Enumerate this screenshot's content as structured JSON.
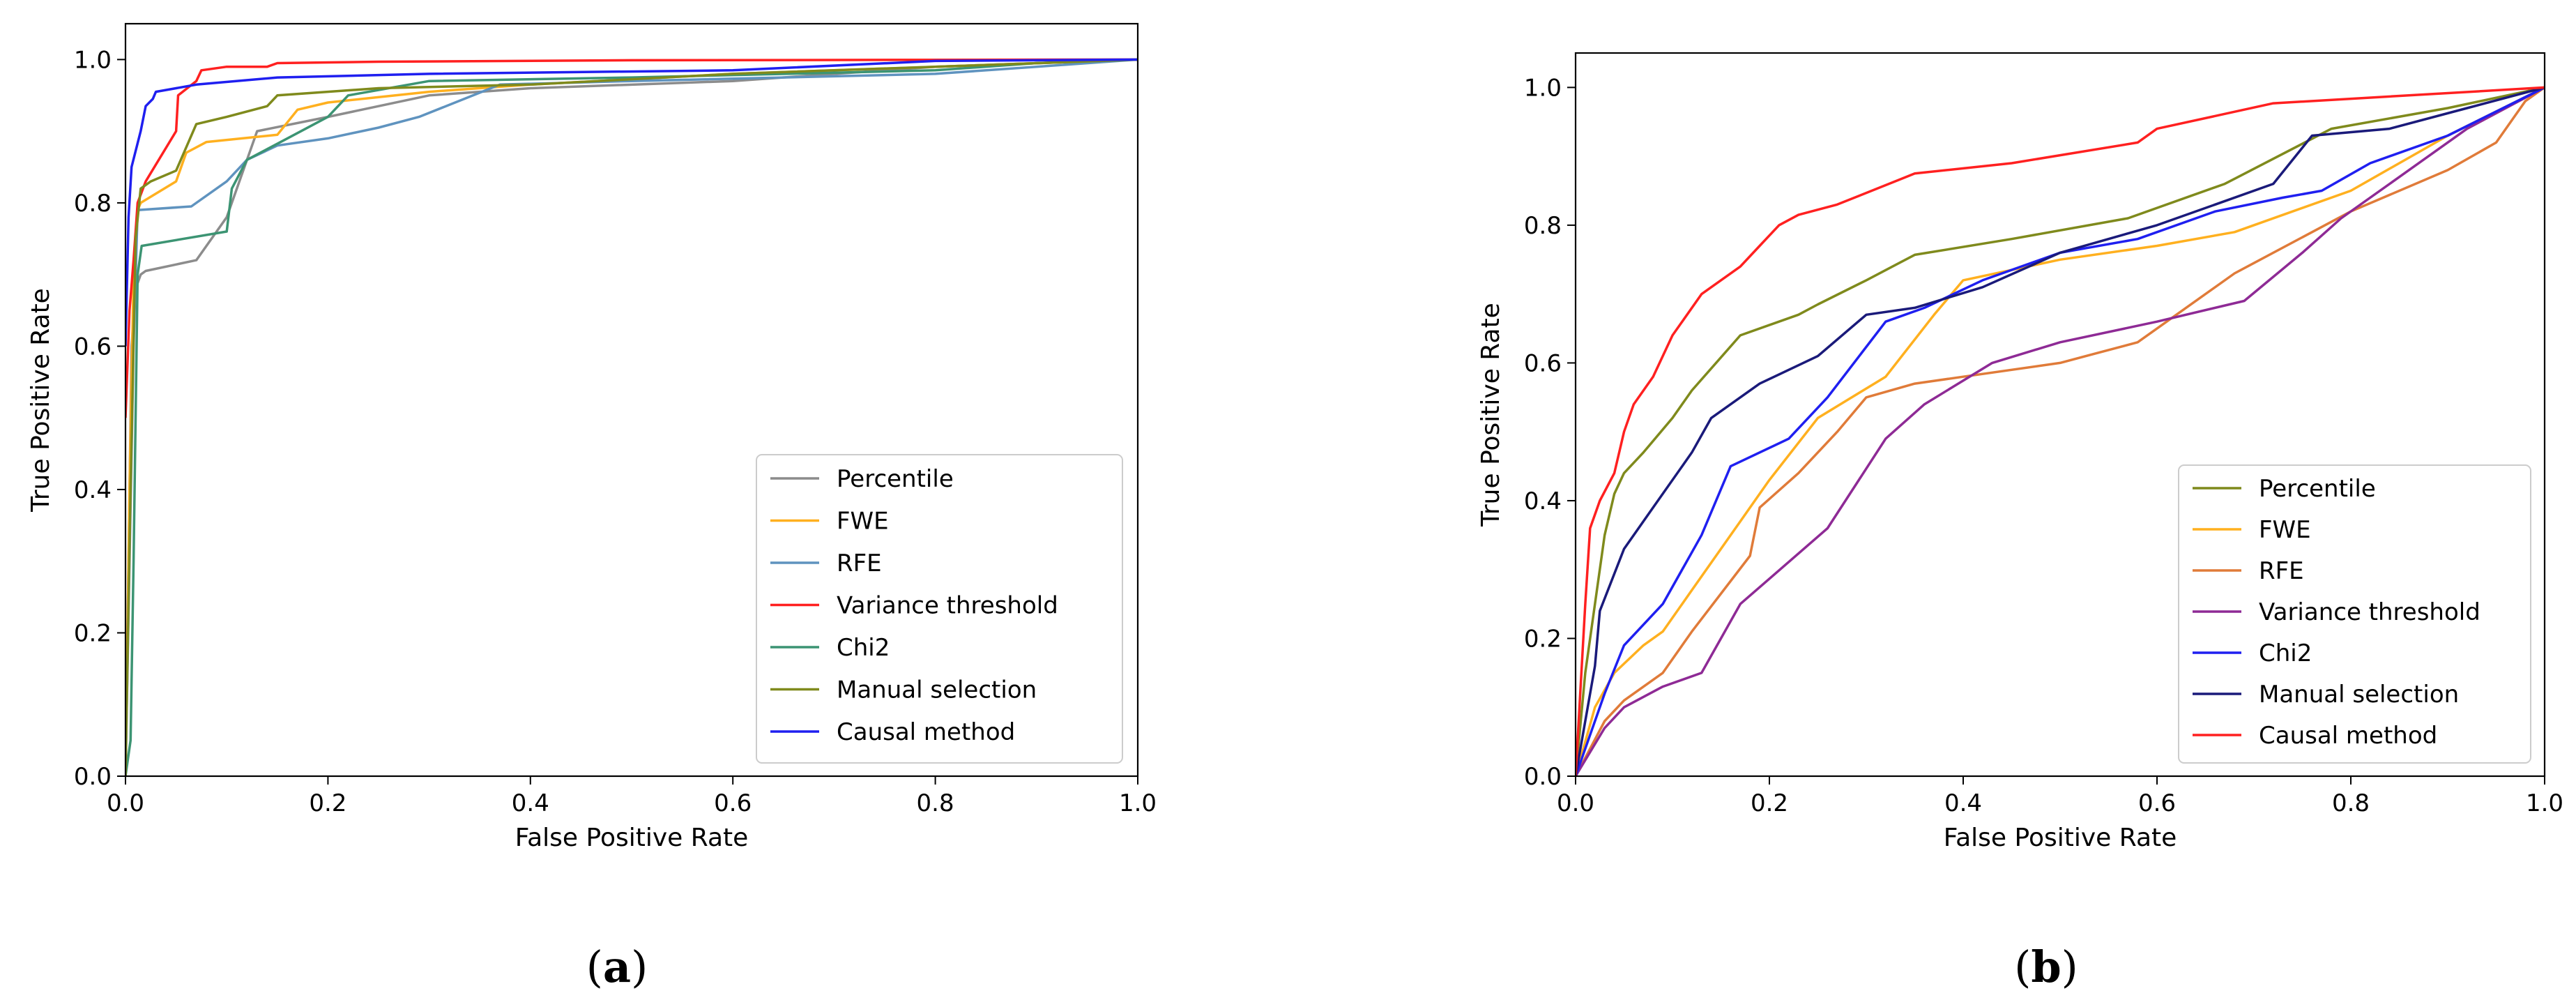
{
  "panels": [
    {
      "label_open": "(",
      "label_letter": "a",
      "label_close": ")"
    },
    {
      "label_open": "(",
      "label_letter": "b",
      "label_close": ")"
    }
  ],
  "chart_data": [
    {
      "type": "line",
      "title": "",
      "xlabel": "False Positive Rate",
      "ylabel": "True Positive Rate",
      "xlim": [
        0,
        1
      ],
      "ylim": [
        0,
        1.05
      ],
      "xticks": [
        0,
        0.2,
        0.4,
        0.6,
        0.8,
        1.0
      ],
      "xtick_labels": [
        "0.0",
        "0.2",
        "0.4",
        "0.6",
        "0.8",
        "1.0"
      ],
      "yticks": [
        0,
        0.2,
        0.4,
        0.6,
        0.8,
        1.0
      ],
      "ytick_labels": [
        "0.0",
        "0.2",
        "0.4",
        "0.6",
        "0.8",
        "1.0"
      ],
      "grid": false,
      "legend_position": "lower-right",
      "series": [
        {
          "name": "Percentile",
          "color": "#8c8c8c",
          "points": [
            [
              0,
              0
            ],
            [
              0.003,
              0.3
            ],
            [
              0.006,
              0.6
            ],
            [
              0.01,
              0.68
            ],
            [
              0.015,
              0.7
            ],
            [
              0.02,
              0.705
            ],
            [
              0.07,
              0.72
            ],
            [
              0.1,
              0.78
            ],
            [
              0.105,
              0.8
            ],
            [
              0.13,
              0.9
            ],
            [
              0.2,
              0.92
            ],
            [
              0.3,
              0.95
            ],
            [
              0.4,
              0.96
            ],
            [
              0.6,
              0.97
            ],
            [
              0.8,
              0.99
            ],
            [
              1.0,
              1.0
            ]
          ]
        },
        {
          "name": "FWE",
          "color": "#ffb01f",
          "points": [
            [
              0,
              0
            ],
            [
              0.004,
              0.4
            ],
            [
              0.008,
              0.7
            ],
            [
              0.012,
              0.79
            ],
            [
              0.015,
              0.8
            ],
            [
              0.05,
              0.83
            ],
            [
              0.06,
              0.87
            ],
            [
              0.08,
              0.885
            ],
            [
              0.15,
              0.895
            ],
            [
              0.17,
              0.93
            ],
            [
              0.2,
              0.94
            ],
            [
              0.3,
              0.955
            ],
            [
              0.4,
              0.965
            ],
            [
              0.6,
              0.98
            ],
            [
              0.8,
              0.99
            ],
            [
              1.0,
              1.0
            ]
          ]
        },
        {
          "name": "RFE",
          "color": "#5f93bf",
          "points": [
            [
              0,
              0
            ],
            [
              0.004,
              0.3
            ],
            [
              0.008,
              0.6
            ],
            [
              0.012,
              0.79
            ],
            [
              0.065,
              0.795
            ],
            [
              0.1,
              0.83
            ],
            [
              0.12,
              0.86
            ],
            [
              0.15,
              0.88
            ],
            [
              0.2,
              0.89
            ],
            [
              0.25,
              0.905
            ],
            [
              0.29,
              0.92
            ],
            [
              0.37,
              0.965
            ],
            [
              0.5,
              0.97
            ],
            [
              0.8,
              0.98
            ],
            [
              0.9,
              0.99
            ],
            [
              1.0,
              1.0
            ]
          ]
        },
        {
          "name": "Variance threshold",
          "color": "#ff2020",
          "points": [
            [
              0,
              0.5
            ],
            [
              0.004,
              0.65
            ],
            [
              0.008,
              0.72
            ],
            [
              0.012,
              0.8
            ],
            [
              0.02,
              0.83
            ],
            [
              0.05,
              0.9
            ],
            [
              0.052,
              0.95
            ],
            [
              0.07,
              0.97
            ],
            [
              0.075,
              0.985
            ],
            [
              0.1,
              0.99
            ],
            [
              0.14,
              0.99
            ],
            [
              0.15,
              0.995
            ],
            [
              0.25,
              0.997
            ],
            [
              0.5,
              0.999
            ],
            [
              1.0,
              1.0
            ]
          ]
        },
        {
          "name": "Chi2",
          "color": "#3c9473",
          "points": [
            [
              0,
              0
            ],
            [
              0.005,
              0.05
            ],
            [
              0.008,
              0.3
            ],
            [
              0.012,
              0.7
            ],
            [
              0.016,
              0.74
            ],
            [
              0.1,
              0.76
            ],
            [
              0.105,
              0.82
            ],
            [
              0.12,
              0.86
            ],
            [
              0.16,
              0.89
            ],
            [
              0.2,
              0.92
            ],
            [
              0.22,
              0.95
            ],
            [
              0.3,
              0.97
            ],
            [
              0.5,
              0.975
            ],
            [
              0.8,
              0.985
            ],
            [
              0.9,
              0.995
            ],
            [
              1.0,
              1.0
            ]
          ]
        },
        {
          "name": "Manual selection",
          "color": "#7f8a1c",
          "points": [
            [
              0,
              0
            ],
            [
              0.005,
              0.4
            ],
            [
              0.01,
              0.75
            ],
            [
              0.015,
              0.82
            ],
            [
              0.025,
              0.83
            ],
            [
              0.05,
              0.845
            ],
            [
              0.07,
              0.91
            ],
            [
              0.1,
              0.92
            ],
            [
              0.14,
              0.935
            ],
            [
              0.15,
              0.95
            ],
            [
              0.25,
              0.96
            ],
            [
              0.4,
              0.965
            ],
            [
              0.6,
              0.98
            ],
            [
              0.8,
              0.99
            ],
            [
              1.0,
              1.0
            ]
          ]
        },
        {
          "name": "Causal method",
          "color": "#1f1ff0",
          "points": [
            [
              0,
              0.6
            ],
            [
              0.003,
              0.78
            ],
            [
              0.006,
              0.85
            ],
            [
              0.015,
              0.9
            ],
            [
              0.02,
              0.935
            ],
            [
              0.027,
              0.945
            ],
            [
              0.03,
              0.955
            ],
            [
              0.05,
              0.96
            ],
            [
              0.07,
              0.965
            ],
            [
              0.15,
              0.975
            ],
            [
              0.3,
              0.98
            ],
            [
              0.6,
              0.985
            ],
            [
              0.8,
              0.998
            ],
            [
              1.0,
              1.0
            ]
          ]
        }
      ]
    },
    {
      "type": "line",
      "title": "",
      "xlabel": "False Positive Rate",
      "ylabel": "True Positive Rate",
      "xlim": [
        0,
        1
      ],
      "ylim": [
        0,
        1.05
      ],
      "xticks": [
        0,
        0.2,
        0.4,
        0.6,
        0.8,
        1.0
      ],
      "xtick_labels": [
        "0.0",
        "0.2",
        "0.4",
        "0.6",
        "0.8",
        "1.0"
      ],
      "yticks": [
        0,
        0.2,
        0.4,
        0.6,
        0.8,
        1.0
      ],
      "ytick_labels": [
        "0.0",
        "0.2",
        "0.4",
        "0.6",
        "0.8",
        "1.0"
      ],
      "grid": false,
      "legend_position": "lower-right",
      "series": [
        {
          "name": "Percentile",
          "color": "#7f8a1c",
          "points": [
            [
              0,
              0
            ],
            [
              0.01,
              0.15
            ],
            [
              0.02,
              0.25
            ],
            [
              0.03,
              0.35
            ],
            [
              0.04,
              0.41
            ],
            [
              0.05,
              0.44
            ],
            [
              0.07,
              0.47
            ],
            [
              0.1,
              0.52
            ],
            [
              0.12,
              0.56
            ],
            [
              0.17,
              0.64
            ],
            [
              0.23,
              0.67
            ],
            [
              0.25,
              0.685
            ],
            [
              0.3,
              0.72
            ],
            [
              0.35,
              0.757
            ],
            [
              0.45,
              0.78
            ],
            [
              0.57,
              0.81
            ],
            [
              0.67,
              0.86
            ],
            [
              0.78,
              0.94
            ],
            [
              0.9,
              0.97
            ],
            [
              1.0,
              1.0
            ]
          ]
        },
        {
          "name": "FWE",
          "color": "#ffb01f",
          "points": [
            [
              0,
              0
            ],
            [
              0.02,
              0.1
            ],
            [
              0.04,
              0.15
            ],
            [
              0.07,
              0.19
            ],
            [
              0.09,
              0.21
            ],
            [
              0.12,
              0.27
            ],
            [
              0.17,
              0.37
            ],
            [
              0.2,
              0.43
            ],
            [
              0.25,
              0.52
            ],
            [
              0.32,
              0.58
            ],
            [
              0.37,
              0.67
            ],
            [
              0.4,
              0.72
            ],
            [
              0.5,
              0.75
            ],
            [
              0.6,
              0.77
            ],
            [
              0.68,
              0.79
            ],
            [
              0.8,
              0.85
            ],
            [
              0.9,
              0.93
            ],
            [
              1.0,
              1.0
            ]
          ]
        },
        {
          "name": "RFE",
          "color": "#e07b39",
          "points": [
            [
              0,
              0
            ],
            [
              0.03,
              0.08
            ],
            [
              0.05,
              0.11
            ],
            [
              0.09,
              0.15
            ],
            [
              0.12,
              0.21
            ],
            [
              0.18,
              0.32
            ],
            [
              0.19,
              0.39
            ],
            [
              0.23,
              0.44
            ],
            [
              0.27,
              0.5
            ],
            [
              0.3,
              0.55
            ],
            [
              0.35,
              0.57
            ],
            [
              0.4,
              0.58
            ],
            [
              0.5,
              0.6
            ],
            [
              0.58,
              0.63
            ],
            [
              0.68,
              0.73
            ],
            [
              0.8,
              0.82
            ],
            [
              0.9,
              0.88
            ],
            [
              0.95,
              0.92
            ],
            [
              0.98,
              0.98
            ],
            [
              1.0,
              1.0
            ]
          ]
        },
        {
          "name": "Variance threshold",
          "color": "#8e2a95",
          "points": [
            [
              0,
              0
            ],
            [
              0.03,
              0.07
            ],
            [
              0.05,
              0.1
            ],
            [
              0.09,
              0.13
            ],
            [
              0.13,
              0.15
            ],
            [
              0.17,
              0.25
            ],
            [
              0.26,
              0.36
            ],
            [
              0.32,
              0.49
            ],
            [
              0.36,
              0.54
            ],
            [
              0.43,
              0.6
            ],
            [
              0.5,
              0.63
            ],
            [
              0.6,
              0.66
            ],
            [
              0.69,
              0.69
            ],
            [
              0.75,
              0.76
            ],
            [
              0.79,
              0.81
            ],
            [
              0.85,
              0.87
            ],
            [
              0.92,
              0.94
            ],
            [
              0.96,
              0.97
            ],
            [
              1.0,
              1.0
            ]
          ]
        },
        {
          "name": "Chi2",
          "color": "#1f1ff0",
          "points": [
            [
              0,
              0
            ],
            [
              0.03,
              0.12
            ],
            [
              0.05,
              0.19
            ],
            [
              0.09,
              0.25
            ],
            [
              0.13,
              0.35
            ],
            [
              0.16,
              0.45
            ],
            [
              0.22,
              0.49
            ],
            [
              0.26,
              0.55
            ],
            [
              0.32,
              0.66
            ],
            [
              0.36,
              0.68
            ],
            [
              0.42,
              0.72
            ],
            [
              0.5,
              0.76
            ],
            [
              0.58,
              0.78
            ],
            [
              0.66,
              0.82
            ],
            [
              0.73,
              0.84
            ],
            [
              0.77,
              0.85
            ],
            [
              0.82,
              0.89
            ],
            [
              0.9,
              0.93
            ],
            [
              1.0,
              1.0
            ]
          ]
        },
        {
          "name": "Manual selection",
          "color": "#1a1a7a",
          "points": [
            [
              0,
              0
            ],
            [
              0.02,
              0.16
            ],
            [
              0.025,
              0.24
            ],
            [
              0.05,
              0.33
            ],
            [
              0.08,
              0.39
            ],
            [
              0.12,
              0.47
            ],
            [
              0.14,
              0.52
            ],
            [
              0.19,
              0.57
            ],
            [
              0.25,
              0.61
            ],
            [
              0.3,
              0.67
            ],
            [
              0.35,
              0.68
            ],
            [
              0.42,
              0.71
            ],
            [
              0.5,
              0.76
            ],
            [
              0.6,
              0.8
            ],
            [
              0.66,
              0.83
            ],
            [
              0.72,
              0.86
            ],
            [
              0.76,
              0.93
            ],
            [
              0.84,
              0.94
            ],
            [
              0.92,
              0.97
            ],
            [
              1.0,
              1.0
            ]
          ]
        },
        {
          "name": "Causal method",
          "color": "#ff2020",
          "points": [
            [
              0,
              0
            ],
            [
              0.01,
              0.25
            ],
            [
              0.015,
              0.36
            ],
            [
              0.025,
              0.4
            ],
            [
              0.04,
              0.44
            ],
            [
              0.05,
              0.5
            ],
            [
              0.06,
              0.54
            ],
            [
              0.08,
              0.58
            ],
            [
              0.1,
              0.64
            ],
            [
              0.13,
              0.7
            ],
            [
              0.17,
              0.74
            ],
            [
              0.19,
              0.77
            ],
            [
              0.21,
              0.8
            ],
            [
              0.23,
              0.815
            ],
            [
              0.27,
              0.83
            ],
            [
              0.35,
              0.875
            ],
            [
              0.45,
              0.89
            ],
            [
              0.58,
              0.92
            ],
            [
              0.6,
              0.94
            ],
            [
              0.72,
              0.977
            ],
            [
              1.0,
              1.0
            ]
          ]
        }
      ]
    }
  ]
}
